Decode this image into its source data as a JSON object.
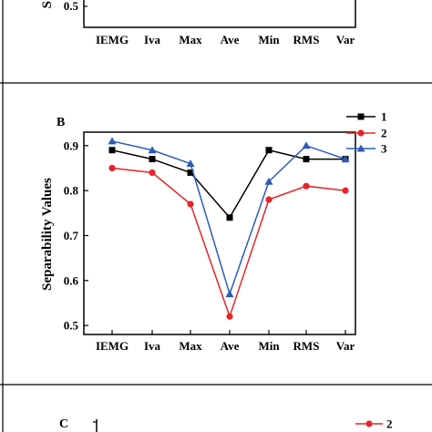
{
  "chart_data": [
    {
      "type": "line",
      "panel_label": "",
      "categories": [
        "IEMG",
        "Iva",
        "Max",
        "Ave",
        "Min",
        "RMS",
        "Var"
      ],
      "visible_tick_labels": [
        "0.5"
      ],
      "ylabel_fragment": "S",
      "series": []
    },
    {
      "type": "line",
      "panel_label": "B",
      "ylabel": "Separability Values",
      "categories": [
        "IEMG",
        "Iva",
        "Max",
        "Ave",
        "Min",
        "RMS",
        "Var"
      ],
      "yticks": [
        "0.5",
        "0.6",
        "0.7",
        "0.8",
        "0.9"
      ],
      "ylim": [
        0.48,
        0.93
      ],
      "legend_position": "top-right",
      "grid": false,
      "series": [
        {
          "name": "1",
          "color": "#000000",
          "marker": "square",
          "values": [
            0.89,
            0.87,
            0.84,
            0.74,
            0.89,
            0.87,
            0.87
          ]
        },
        {
          "name": "2",
          "color": "#e8242a",
          "marker": "circle",
          "values": [
            0.85,
            0.84,
            0.77,
            0.52,
            0.78,
            0.81,
            0.8
          ]
        },
        {
          "name": "3",
          "color": "#2a5cb8",
          "marker": "triangle",
          "values": [
            0.91,
            0.89,
            0.86,
            0.57,
            0.82,
            0.9,
            0.87
          ]
        }
      ]
    },
    {
      "type": "line",
      "panel_label": "C",
      "legend_visible": [
        "2"
      ],
      "series": [
        {
          "name": "2",
          "color": "#e8242a",
          "marker": "circle",
          "values": []
        }
      ]
    }
  ]
}
